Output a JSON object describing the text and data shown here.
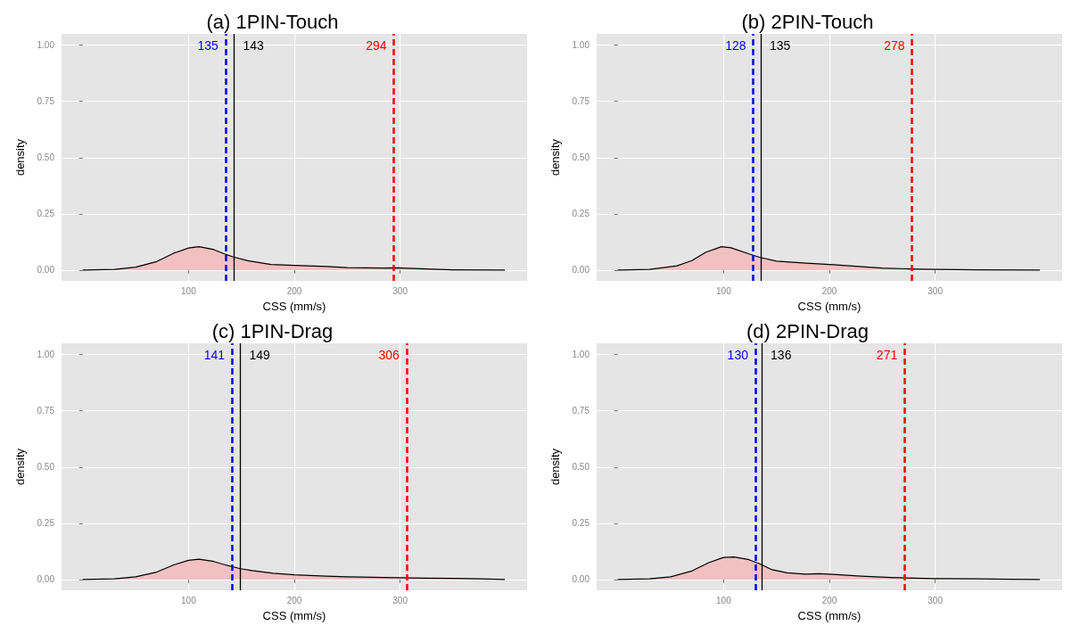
{
  "chart_data": [
    {
      "type": "area",
      "title": "(a) 1PIN-Touch",
      "xlabel": "CSS (mm/s)",
      "ylabel": "density",
      "xlim": [
        -20,
        420
      ],
      "ylim": [
        -0.048,
        1.05
      ],
      "xticks": [
        100,
        200,
        300
      ],
      "yticks": [
        {
          "value": 0,
          "label": "0.00"
        },
        {
          "value": 0.25,
          "label": "0.25"
        },
        {
          "value": 0.5,
          "label": "0.50"
        },
        {
          "value": 0.75,
          "label": "0.75"
        },
        {
          "value": 1,
          "label": "1.00"
        }
      ],
      "grid": true,
      "series": [
        {
          "color": "#f2c0c0",
          "x": [
            0,
            30,
            50,
            70,
            86,
            100,
            110,
            124,
            134,
            142,
            156,
            178,
            200,
            231,
            250,
            285,
            298,
            325,
            349,
            399
          ],
          "values": [
            0,
            0.003,
            0.013,
            0.038,
            0.075,
            0.098,
            0.104,
            0.091,
            0.072,
            0.059,
            0.042,
            0.025,
            0.021,
            0.016,
            0.011,
            0.009,
            0.01,
            0.005,
            0.001,
            0
          ]
        }
      ],
      "ref_lines": [
        {
          "axis": "x",
          "value": 135,
          "label": "135",
          "color": "#0000ff",
          "line_style": "dashed"
        },
        {
          "axis": "x",
          "value": 143,
          "label": "143",
          "color": "#000000",
          "line_style": "solid"
        },
        {
          "axis": "x",
          "value": 294,
          "label": "294",
          "color": "#ff0000",
          "line_style": "dashed"
        }
      ]
    },
    {
      "type": "area",
      "title": "(b) 2PIN-Touch",
      "xlabel": "CSS (mm/s)",
      "ylabel": "density",
      "xlim": [
        -20,
        420
      ],
      "ylim": [
        -0.048,
        1.05
      ],
      "xticks": [
        100,
        200,
        300
      ],
      "yticks": [
        {
          "value": 0,
          "label": "0.00"
        },
        {
          "value": 0.25,
          "label": "0.25"
        },
        {
          "value": 0.5,
          "label": "0.50"
        },
        {
          "value": 0.75,
          "label": "0.75"
        },
        {
          "value": 1,
          "label": "1.00"
        }
      ],
      "grid": true,
      "series": [
        {
          "color": "#f2c0c0",
          "x": [
            0,
            30,
            56,
            70,
            83,
            98,
            107,
            124,
            134,
            150,
            178,
            204,
            231,
            250,
            285,
            339,
            399
          ],
          "values": [
            0,
            0.003,
            0.019,
            0.042,
            0.079,
            0.104,
            0.099,
            0.072,
            0.057,
            0.04,
            0.031,
            0.024,
            0.015,
            0.009,
            0.004,
            0.001,
            0
          ]
        }
      ],
      "ref_lines": [
        {
          "axis": "x",
          "value": 128,
          "label": "128",
          "color": "#0000ff",
          "line_style": "dashed"
        },
        {
          "axis": "x",
          "value": 135,
          "label": "135",
          "color": "#000000",
          "line_style": "solid"
        },
        {
          "axis": "x",
          "value": 278,
          "label": "278",
          "color": "#ff0000",
          "line_style": "dashed"
        }
      ]
    },
    {
      "type": "area",
      "title": "(c) 1PIN-Drag",
      "xlabel": "CSS (mm/s)",
      "ylabel": "density",
      "xlim": [
        -20,
        420
      ],
      "ylim": [
        -0.048,
        1.05
      ],
      "xticks": [
        100,
        200,
        300
      ],
      "yticks": [
        {
          "value": 0,
          "label": "0.00"
        },
        {
          "value": 0.25,
          "label": "0.25"
        },
        {
          "value": 0.5,
          "label": "0.50"
        },
        {
          "value": 0.75,
          "label": "0.75"
        },
        {
          "value": 1,
          "label": "1.00"
        }
      ],
      "grid": true,
      "series": [
        {
          "color": "#f2c0c0",
          "x": [
            0,
            30,
            50,
            70,
            86,
            100,
            110,
            124,
            134,
            149,
            160,
            180,
            200,
            230,
            250,
            285,
            300,
            325,
            350,
            375,
            399
          ],
          "values": [
            0,
            0.003,
            0.012,
            0.033,
            0.065,
            0.085,
            0.09,
            0.08,
            0.066,
            0.048,
            0.04,
            0.028,
            0.021,
            0.015,
            0.012,
            0.009,
            0.008,
            0.006,
            0.005,
            0.003,
            0
          ]
        }
      ],
      "ref_lines": [
        {
          "axis": "x",
          "value": 141,
          "label": "141",
          "color": "#0000ff",
          "line_style": "dashed"
        },
        {
          "axis": "x",
          "value": 149,
          "label": "149",
          "color": "#000000",
          "line_style": "solid"
        },
        {
          "axis": "x",
          "value": 306,
          "label": "306",
          "color": "#ff0000",
          "line_style": "dashed"
        }
      ]
    },
    {
      "type": "area",
      "title": "(d) 2PIN-Drag",
      "xlabel": "CSS (mm/s)",
      "ylabel": "density",
      "xlim": [
        -20,
        420
      ],
      "ylim": [
        -0.048,
        1.05
      ],
      "xticks": [
        100,
        200,
        300
      ],
      "yticks": [
        {
          "value": 0,
          "label": "0.00"
        },
        {
          "value": 0.25,
          "label": "0.25"
        },
        {
          "value": 0.5,
          "label": "0.50"
        },
        {
          "value": 0.75,
          "label": "0.75"
        },
        {
          "value": 1,
          "label": "1.00"
        }
      ],
      "grid": true,
      "series": [
        {
          "color": "#f2c0c0",
          "x": [
            0,
            30,
            50,
            70,
            86,
            100,
            110,
            124,
            134,
            145,
            160,
            177,
            190,
            200,
            230,
            258,
            298,
            340,
            370,
            399
          ],
          "values": [
            0,
            0.003,
            0.012,
            0.038,
            0.075,
            0.098,
            0.1,
            0.088,
            0.07,
            0.045,
            0.03,
            0.024,
            0.026,
            0.024,
            0.015,
            0.009,
            0.004,
            0.003,
            0.001,
            0
          ]
        }
      ],
      "ref_lines": [
        {
          "axis": "x",
          "value": 130,
          "label": "130",
          "color": "#0000ff",
          "line_style": "dashed"
        },
        {
          "axis": "x",
          "value": 136,
          "label": "136",
          "color": "#000000",
          "line_style": "solid"
        },
        {
          "axis": "x",
          "value": 271,
          "label": "271",
          "color": "#ff0000",
          "line_style": "dashed"
        }
      ]
    }
  ]
}
